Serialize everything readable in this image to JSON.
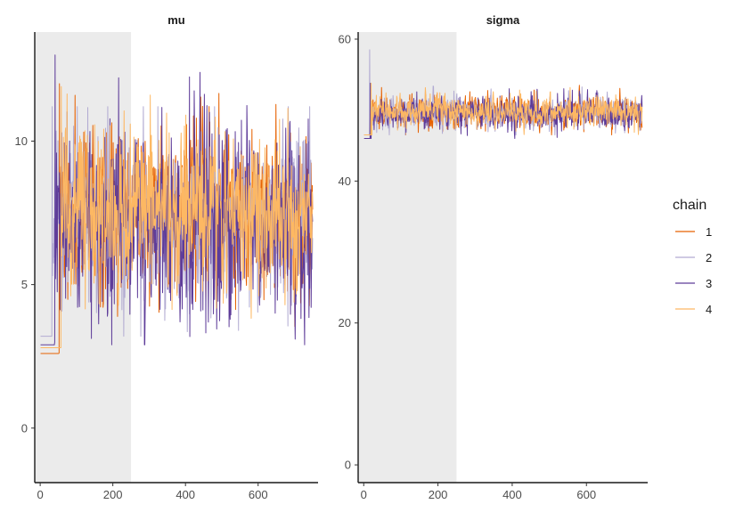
{
  "chart_data": {
    "type": "line",
    "n_iterations": 750,
    "warmup_iterations": 250,
    "x_ticks": [
      0,
      200,
      400,
      600
    ],
    "legend": {
      "title": "chain",
      "placement": "right",
      "entries": [
        "1",
        "2",
        "3",
        "4"
      ]
    },
    "colors": {
      "1": "#e66101",
      "2": "#b2abd2",
      "3": "#5e3c99",
      "4": "#fdb863",
      "warmup_shade": "#ebebeb"
    },
    "panels": [
      {
        "title": "mu",
        "xlim": [
          -15,
          765
        ],
        "ylim": [
          -1.9,
          13.8
        ],
        "y_ticks": [
          0,
          5,
          10
        ],
        "series": [
          {
            "name": "1",
            "init": -1.0,
            "jump_iter": 50,
            "mean": 7.6,
            "sd": 1.25,
            "min": 2.6,
            "max": 12.0,
            "seed": 11
          },
          {
            "name": "2",
            "init": -1.3,
            "jump_iter": 30,
            "mean": 7.3,
            "sd": 1.3,
            "min": 3.2,
            "max": 11.2,
            "seed": 23
          },
          {
            "name": "3",
            "init": -0.9,
            "jump_iter": 38,
            "mean": 7.2,
            "sd": 1.6,
            "min": 2.9,
            "max": 13.0,
            "seed": 37
          },
          {
            "name": "4",
            "init": 0.75,
            "jump_iter": 55,
            "mean": 7.6,
            "sd": 1.3,
            "min": 2.8,
            "max": 11.9,
            "seed": 51
          }
        ]
      },
      {
        "title": "sigma",
        "xlim": [
          -15,
          765
        ],
        "ylim": [
          -2.5,
          61.0
        ],
        "y_ticks": [
          0,
          20,
          40,
          60
        ],
        "series": [
          {
            "name": "1",
            "init": 0.5,
            "jump_iter": 16,
            "mean": 49.7,
            "sd": 1.05,
            "min": 46.5,
            "max": 53.5,
            "seed": 61
          },
          {
            "name": "2",
            "init": 10.0,
            "jump_iter": 13,
            "mean": 49.7,
            "sd": 1.05,
            "min": 46.5,
            "max": 58.5,
            "seed": 73
          },
          {
            "name": "3",
            "init": 0.6,
            "jump_iter": 15,
            "mean": 49.6,
            "sd": 1.05,
            "min": 46.0,
            "max": 53.8,
            "seed": 89
          },
          {
            "name": "4",
            "init": 0.3,
            "jump_iter": 17,
            "mean": 49.8,
            "sd": 1.05,
            "min": 46.5,
            "max": 53.8,
            "seed": 97
          }
        ]
      }
    ]
  }
}
